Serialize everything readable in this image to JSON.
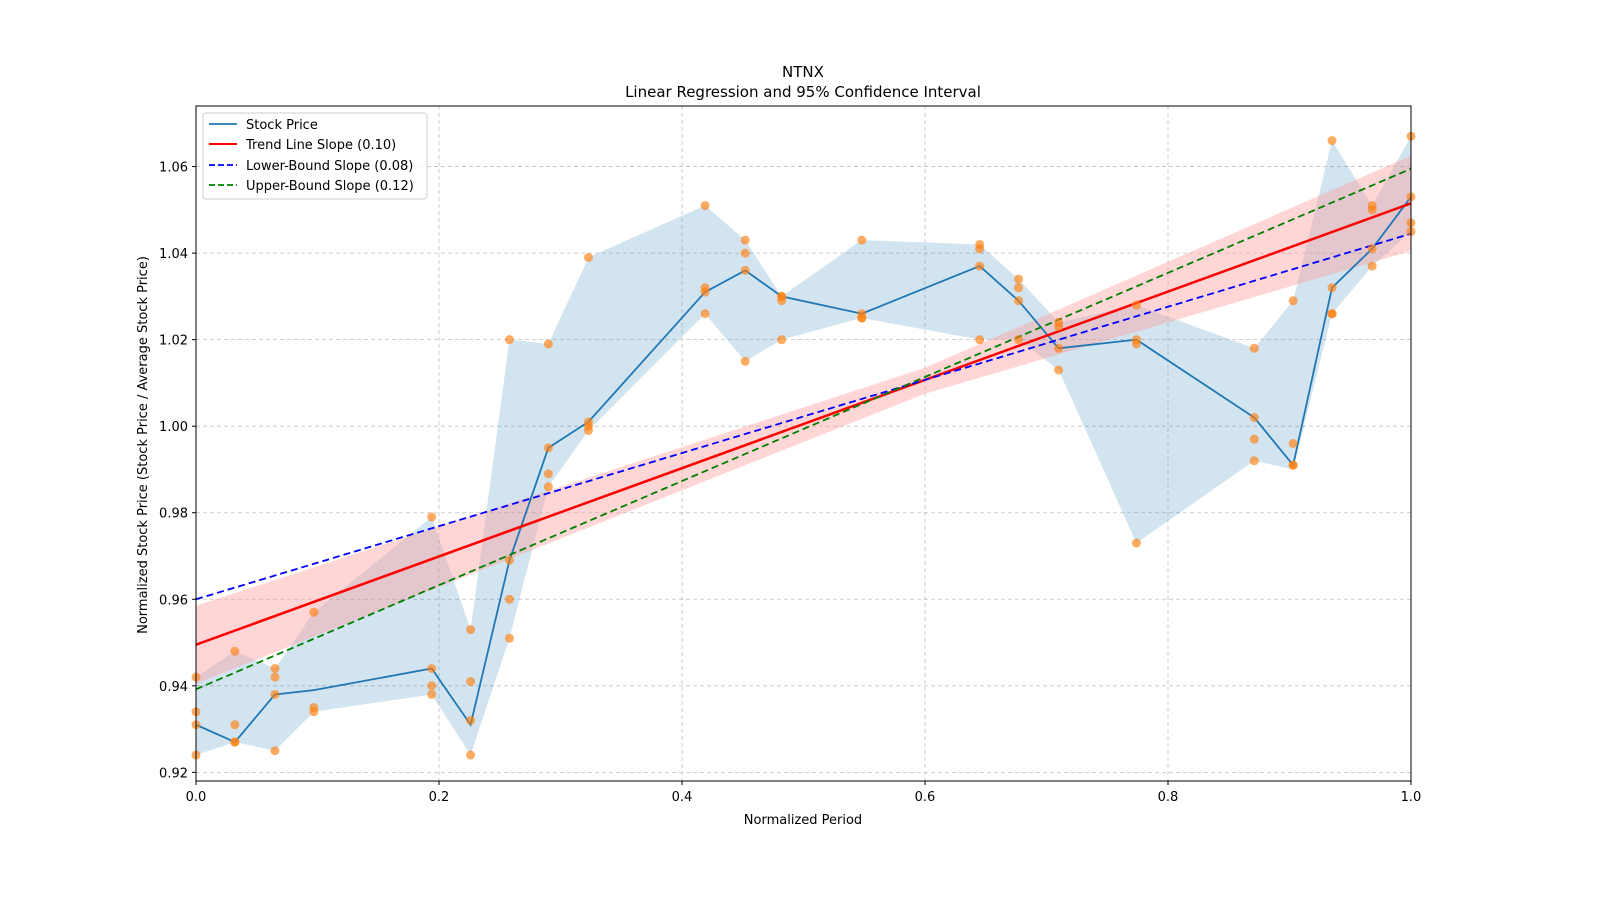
{
  "chart_data": {
    "type": "line",
    "title": "NTNX",
    "subtitle": "Linear Regression and 95% Confidence Interval",
    "xlabel": "Normalized Period",
    "ylabel": "Normalized Stock Price (Stock Price / Average Stock Price)",
    "xlim": [
      0.0,
      1.0
    ],
    "ylim": [
      0.918,
      1.074
    ],
    "xticks": [
      "0.0",
      "0.2",
      "0.4",
      "0.6",
      "0.8",
      "1.0"
    ],
    "xtick_values": [
      0.0,
      0.2,
      0.4,
      0.6,
      0.8,
      1.0
    ],
    "yticks": [
      "0.92",
      "0.94",
      "0.96",
      "0.98",
      "1.00",
      "1.02",
      "1.04",
      "1.06"
    ],
    "ytick_values": [
      0.92,
      0.94,
      0.96,
      0.98,
      1.0,
      1.02,
      1.04,
      1.06
    ],
    "grid": true,
    "legend_position": "top-left",
    "legend": [
      {
        "label": "Stock Price",
        "color": "#1f77b4",
        "style": "solid"
      },
      {
        "label": "Trend Line Slope (0.10)",
        "color": "#ff0000",
        "style": "solid"
      },
      {
        "label": "Lower-Bound Slope (0.08)",
        "color": "#0000ff",
        "style": "dashed"
      },
      {
        "label": "Upper-Bound Slope (0.12)",
        "color": "#008000",
        "style": "dashed"
      }
    ],
    "colors": {
      "stock": "#1f77b4",
      "band": "#1f77b4",
      "trend": "#ff0000",
      "trend_ci": "#ff9999",
      "lower": "#0000ff",
      "upper": "#008000",
      "points": "#ff7f0e"
    },
    "series": [
      {
        "name": "Stock Price",
        "x": [
          0.0,
          0.032,
          0.065,
          0.097,
          0.194,
          0.226,
          0.258,
          0.29,
          0.323,
          0.419,
          0.452,
          0.482,
          0.548,
          0.645,
          0.677,
          0.71,
          0.774,
          0.871,
          0.903,
          0.935,
          0.968,
          1.0
        ],
        "y": [
          0.931,
          0.927,
          0.938,
          0.939,
          0.944,
          0.931,
          0.969,
          0.995,
          1.001,
          1.031,
          1.036,
          1.03,
          1.026,
          1.037,
          1.029,
          1.018,
          1.02,
          1.002,
          0.991,
          1.032,
          1.041,
          1.053
        ]
      },
      {
        "name": "Band Upper",
        "x": [
          0.0,
          0.032,
          0.065,
          0.097,
          0.194,
          0.226,
          0.258,
          0.29,
          0.323,
          0.419,
          0.452,
          0.482,
          0.548,
          0.645,
          0.677,
          0.71,
          0.774,
          0.871,
          0.903,
          0.935,
          0.968,
          1.0
        ],
        "y": [
          0.942,
          0.948,
          0.944,
          0.957,
          0.979,
          0.953,
          1.02,
          1.019,
          1.039,
          1.051,
          1.043,
          1.03,
          1.043,
          1.042,
          1.034,
          1.024,
          1.028,
          1.018,
          1.029,
          1.066,
          1.051,
          1.067
        ]
      },
      {
        "name": "Band Lower",
        "x": [
          0.0,
          0.032,
          0.065,
          0.097,
          0.194,
          0.226,
          0.258,
          0.29,
          0.323,
          0.419,
          0.452,
          0.482,
          0.548,
          0.645,
          0.677,
          0.71,
          0.774,
          0.871,
          0.903,
          0.935,
          0.968,
          1.0
        ],
        "y": [
          0.924,
          0.927,
          0.925,
          0.934,
          0.938,
          0.924,
          0.951,
          0.986,
          0.999,
          1.026,
          1.015,
          1.02,
          1.025,
          1.02,
          1.02,
          1.013,
          0.973,
          0.992,
          0.99,
          1.026,
          1.037,
          1.045
        ]
      },
      {
        "name": "Trend Line Slope (0.10)",
        "x": [
          0.0,
          1.0
        ],
        "y": [
          0.9495,
          1.0515
        ]
      },
      {
        "name": "Lower-Bound Slope (0.08)",
        "x": [
          0.0,
          1.0
        ],
        "y": [
          0.96,
          1.0445
        ]
      },
      {
        "name": "Upper-Bound Slope (0.12)",
        "x": [
          0.0,
          1.0
        ],
        "y": [
          0.9392,
          1.0595
        ]
      },
      {
        "name": "Trend CI",
        "x": [
          0.0,
          0.6,
          1.0
        ],
        "upper": [
          0.9585,
          1.0135,
          1.0625
        ],
        "lower": [
          0.9405,
          1.0075,
          1.0405
        ]
      }
    ],
    "points": {
      "x": [
        0.0,
        0.0,
        0.0,
        0.0,
        0.032,
        0.032,
        0.032,
        0.032,
        0.065,
        0.065,
        0.065,
        0.065,
        0.097,
        0.097,
        0.097,
        0.194,
        0.194,
        0.194,
        0.194,
        0.226,
        0.226,
        0.226,
        0.226,
        0.258,
        0.258,
        0.258,
        0.258,
        0.29,
        0.29,
        0.29,
        0.29,
        0.323,
        0.323,
        0.323,
        0.323,
        0.419,
        0.419,
        0.419,
        0.419,
        0.452,
        0.452,
        0.452,
        0.452,
        0.482,
        0.482,
        0.482,
        0.482,
        0.548,
        0.548,
        0.548,
        0.548,
        0.645,
        0.645,
        0.645,
        0.645,
        0.677,
        0.677,
        0.677,
        0.677,
        0.71,
        0.71,
        0.71,
        0.71,
        0.774,
        0.774,
        0.774,
        0.774,
        0.871,
        0.871,
        0.871,
        0.871,
        0.903,
        0.903,
        0.903,
        0.903,
        0.935,
        0.935,
        0.935,
        0.935,
        0.968,
        0.968,
        0.968,
        0.968,
        1.0,
        1.0,
        1.0,
        1.0
      ],
      "y": [
        0.942,
        0.934,
        0.931,
        0.924,
        0.948,
        0.931,
        0.927,
        0.927,
        0.944,
        0.942,
        0.938,
        0.925,
        0.957,
        0.935,
        0.934,
        0.979,
        0.944,
        0.94,
        0.938,
        0.953,
        0.941,
        0.932,
        0.924,
        1.02,
        0.969,
        0.96,
        0.951,
        1.019,
        0.995,
        0.989,
        0.986,
        1.039,
        1.001,
        1.0,
        0.999,
        1.051,
        1.032,
        1.031,
        1.026,
        1.043,
        1.04,
        1.036,
        1.015,
        1.03,
        1.03,
        1.029,
        1.02,
        1.043,
        1.026,
        1.025,
        1.025,
        1.042,
        1.041,
        1.037,
        1.02,
        1.034,
        1.032,
        1.029,
        1.02,
        1.024,
        1.023,
        1.018,
        1.013,
        1.028,
        1.02,
        1.019,
        0.973,
        1.018,
        1.002,
        0.997,
        0.992,
        1.029,
        0.996,
        0.991,
        0.991,
        1.066,
        1.032,
        1.026,
        1.026,
        1.051,
        1.05,
        1.041,
        1.037,
        1.067,
        1.053,
        1.047,
        1.045
      ]
    }
  }
}
